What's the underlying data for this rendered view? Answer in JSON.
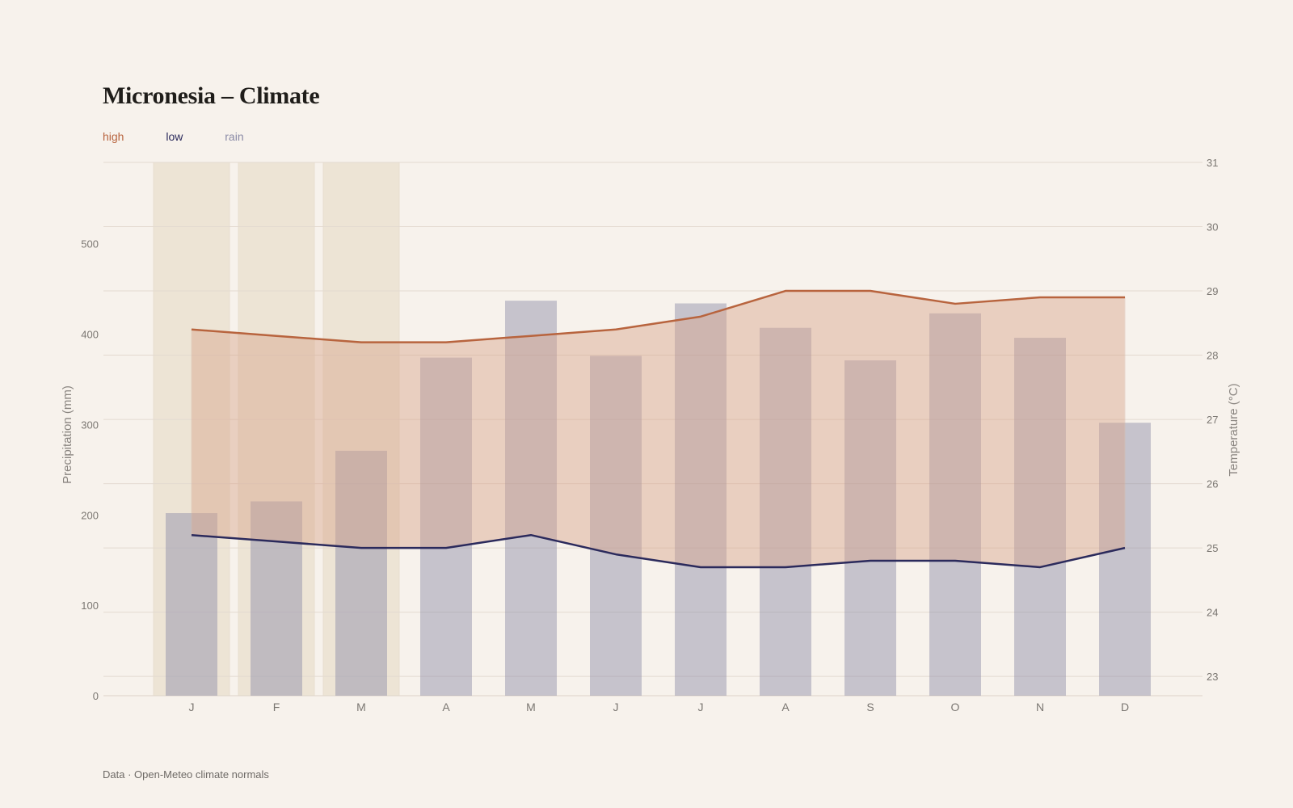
{
  "title": "Micronesia – Climate",
  "source": "Data · Open-Meteo climate normals",
  "legend": [
    {
      "label": "high",
      "color": "#b8643e"
    },
    {
      "label": "low",
      "color": "#2b2a5c"
    },
    {
      "label": "rain",
      "color": "#8a8aa6"
    }
  ],
  "chart_data": {
    "type": "bar+line",
    "categories": [
      "J",
      "F",
      "M",
      "A",
      "M",
      "J",
      "J",
      "A",
      "S",
      "O",
      "N",
      "D"
    ],
    "highlighted_months": [
      0,
      1,
      2
    ],
    "rain": [
      202,
      215,
      271,
      374,
      437,
      376,
      434,
      407,
      371,
      423,
      396,
      302
    ],
    "high": [
      28.4,
      28.3,
      28.2,
      28.2,
      28.3,
      28.4,
      28.6,
      29.0,
      29.0,
      28.8,
      28.9,
      28.9
    ],
    "low": [
      25.2,
      25.1,
      25.0,
      25.0,
      25.2,
      24.9,
      24.7,
      24.7,
      24.8,
      24.8,
      24.7,
      25.0
    ],
    "y_left": {
      "label": "Precipitation (mm)",
      "ticks": [
        0,
        100,
        200,
        300,
        400,
        500
      ],
      "range": [
        0,
        590
      ]
    },
    "y_right": {
      "label": "Temperature (°C)",
      "ticks": [
        23,
        24,
        25,
        26,
        27,
        28,
        29,
        30,
        31
      ],
      "range": [
        22.7,
        31
      ]
    },
    "colors": {
      "high": "#b8643e",
      "low": "#2b2a5c",
      "rain": "#8a8aa6",
      "band": "#d9a58c",
      "highlight": "#e6d9c3"
    }
  }
}
